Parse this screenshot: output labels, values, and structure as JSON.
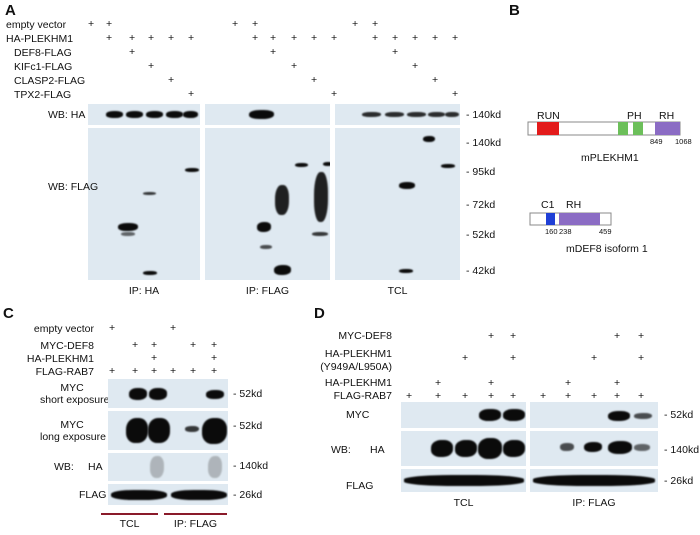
{
  "panels": {
    "a": "A",
    "b": "B",
    "c": "C",
    "d": "D"
  },
  "panelA": {
    "rows": [
      {
        "label": "empty vector",
        "marks": [
          "+",
          "+",
          "",
          "",
          "",
          "",
          "",
          "+",
          "+",
          "",
          "",
          "",
          "",
          "",
          "+",
          "+",
          "",
          "",
          "",
          ""
        ]
      },
      {
        "label": "HA-PLEKHM1",
        "marks": [
          "",
          "+",
          "+",
          "+",
          "+",
          "+",
          "",
          "",
          "+",
          "+",
          "+",
          "+",
          "+",
          "",
          "",
          "+",
          "+",
          "+",
          "+",
          "+"
        ]
      },
      {
        "label": "DEF8-FLAG",
        "marks": [
          "",
          "",
          "+",
          "",
          "",
          "",
          "",
          "",
          "",
          "+",
          "",
          "",
          "",
          "",
          "",
          "",
          "+",
          "",
          "",
          ""
        ]
      },
      {
        "label": "KIFc1-FLAG",
        "marks": [
          "",
          "",
          "",
          "+",
          "",
          "",
          "",
          "",
          "",
          "",
          "+",
          "",
          "",
          "",
          "",
          "",
          "",
          "+",
          "",
          ""
        ]
      },
      {
        "label": "CLASP2-FLAG",
        "marks": [
          "",
          "",
          "",
          "",
          "+",
          "",
          "",
          "",
          "",
          "",
          "",
          "+",
          "",
          "",
          "",
          "",
          "",
          "",
          "+",
          ""
        ]
      },
      {
        "label": "TPX2-FLAG",
        "marks": [
          "",
          "",
          "",
          "",
          "",
          "+",
          "",
          "",
          "",
          "",
          "",
          "",
          "+",
          "",
          "",
          "",
          "",
          "",
          "",
          "+"
        ]
      }
    ],
    "wb_ha": "WB: HA",
    "wb_flag": "WB: FLAG",
    "mw_ha": "140kd",
    "mw_flag": [
      "140kd",
      "95kd",
      "72kd",
      "52kd",
      "42kd"
    ],
    "lane_groups": [
      "IP: HA",
      "IP: FLAG",
      "TCL"
    ]
  },
  "panelB": {
    "plekhm1": {
      "domains": [
        "RUN",
        "PH",
        "RH"
      ],
      "positions": [
        "849",
        "1068"
      ],
      "name": "mPLEKHM1"
    },
    "def8": {
      "domains": [
        "C1",
        "RH"
      ],
      "positions": [
        "160",
        "238",
        "459"
      ],
      "name": "mDEF8 isoform 1"
    },
    "colors": {
      "run": "#e31b1b",
      "ph": "#6cbf5a",
      "rh": "#8b6cc4",
      "c1": "#1f3fd6"
    }
  },
  "panelC": {
    "rows": [
      {
        "label": "empty vector",
        "marks": [
          "+",
          "",
          "",
          "",
          "+",
          "",
          "",
          ""
        ]
      },
      {
        "label": "MYC-DEF8",
        "marks": [
          "",
          "+",
          "+",
          "",
          "",
          "+",
          "+",
          ""
        ]
      },
      {
        "label": "HA-PLEKHM1",
        "marks": [
          "",
          "",
          "+",
          "",
          "",
          "",
          "+",
          ""
        ]
      },
      {
        "label": "FLAG-RAB7",
        "marks": [
          "+",
          "+",
          "+",
          "",
          "+",
          "+",
          "+",
          ""
        ]
      }
    ],
    "blots": [
      {
        "label1": "MYC",
        "label2": "short exposure",
        "mw": "52kd"
      },
      {
        "label1": "MYC",
        "label2": "long exposure",
        "mw": "52kd"
      },
      {
        "label1": "HA",
        "label2": "",
        "mw": "140kd"
      },
      {
        "label1": "FLAG",
        "label2": "",
        "mw": "26kd"
      }
    ],
    "wb": "WB:",
    "lane_groups": [
      "TCL",
      "IP: FLAG"
    ],
    "underline_color": "#8a1a2a"
  },
  "panelD": {
    "rows": [
      {
        "label": "MYC-DEF8"
      },
      {
        "label": "HA-PLEKHM1"
      },
      {
        "label": "(Y949A/L950A)"
      },
      {
        "label": "HA-PLEKHM1"
      },
      {
        "label": "FLAG-RAB7"
      }
    ],
    "blots": [
      {
        "label": "MYC",
        "mw": "52kd"
      },
      {
        "label": "HA",
        "mw": "140kd"
      },
      {
        "label": "FLAG",
        "mw": "26kd"
      }
    ],
    "wb": "WB:",
    "lane_groups": [
      "TCL",
      "IP: FLAG"
    ]
  }
}
